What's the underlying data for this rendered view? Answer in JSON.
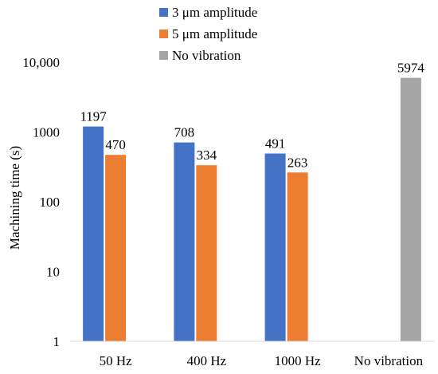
{
  "chart_data": {
    "type": "bar",
    "title": "",
    "xlabel": "",
    "ylabel": "Machining time (s)",
    "yscale": "log",
    "ylim": [
      1,
      10000
    ],
    "y_ticks": [
      {
        "value": 1,
        "label": "1"
      },
      {
        "value": 10,
        "label": "10"
      },
      {
        "value": 100,
        "label": "100"
      },
      {
        "value": 1000,
        "label": "1000"
      },
      {
        "value": 10000,
        "label": "10,000"
      }
    ],
    "categories": [
      "50 Hz",
      "400 Hz",
      "1000 Hz",
      "No vibration"
    ],
    "grid": false,
    "legend_position": "top-center",
    "series": [
      {
        "name": "3 μm amplitude",
        "color": "#4472C4",
        "values": [
          1197,
          708,
          491,
          null
        ],
        "labels": [
          "1197",
          "708",
          "491",
          null
        ]
      },
      {
        "name": "5 μm amplitude",
        "color": "#ED7D31",
        "values": [
          470,
          334,
          263,
          null
        ],
        "labels": [
          "470",
          "334",
          "263",
          null
        ]
      },
      {
        "name": "No vibration",
        "color": "#A5A5A5",
        "values": [
          null,
          null,
          null,
          5974
        ],
        "labels": [
          null,
          null,
          null,
          "5974"
        ]
      }
    ]
  }
}
